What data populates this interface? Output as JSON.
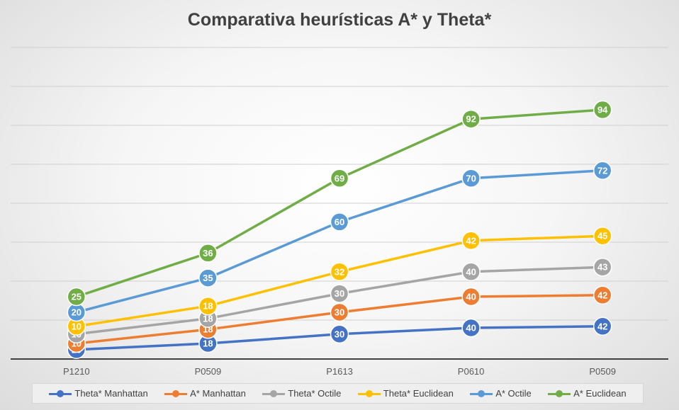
{
  "chart_data": {
    "type": "line",
    "title": "Comparativa heurísticas A* y Theta*",
    "xlabel": "",
    "ylabel": "",
    "categories": [
      "P1210",
      "P0509",
      "P1613",
      "P0610",
      "P0509"
    ],
    "ylim": [
      0,
      100
    ],
    "grid": true,
    "legend_position": "bottom",
    "series": [
      {
        "name": "Theta* Manhattan",
        "color": "#4472C4",
        "values": [
          3,
          5,
          8,
          10,
          10.5
        ],
        "labels": [
          "10",
          "18",
          "30",
          "40",
          "42"
        ]
      },
      {
        "name": "A* Manhattan",
        "color": "#ED7D31",
        "values": [
          5,
          9.5,
          15,
          20,
          20.5
        ],
        "labels": [
          "10",
          "18",
          "30",
          "40",
          "42"
        ]
      },
      {
        "name": "Theta* Octile",
        "color": "#A5A5A5",
        "values": [
          8,
          13,
          21,
          28,
          29.5
        ],
        "labels": [
          "10",
          "18",
          "30",
          "40",
          "43"
        ]
      },
      {
        "name": "Theta* Euclidean",
        "color": "#FFC000",
        "values": [
          10.5,
          17,
          28,
          38,
          39.5
        ],
        "labels": [
          "10",
          "18",
          "32",
          "42",
          "45"
        ]
      },
      {
        "name": "A* Octile",
        "color": "#5B9BD5",
        "values": [
          15,
          26,
          44,
          58,
          60.5
        ],
        "labels": [
          "20",
          "35",
          "60",
          "70",
          "72"
        ]
      },
      {
        "name": "A* Euclidean",
        "color": "#70AD47",
        "values": [
          20,
          34,
          58,
          77,
          80
        ],
        "labels": [
          "25",
          "36",
          "69",
          "92",
          "94"
        ]
      }
    ]
  }
}
